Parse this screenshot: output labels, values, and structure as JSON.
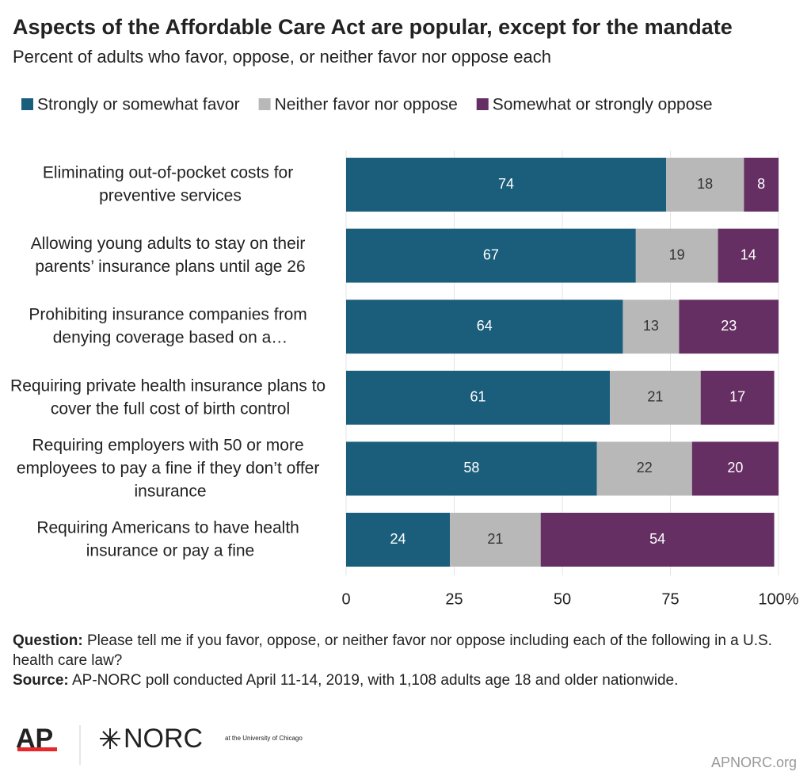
{
  "chart_data": {
    "type": "stacked-barh",
    "title": "Aspects of the Affordable Care Act are popular, except for the mandate",
    "subtitle": "Percent of adults who favor, oppose, or neither favor nor oppose each",
    "categories": [
      "Eliminating out-of-pocket costs for preventive services",
      "Allowing young adults to stay on their parents’ insurance plans until age 26",
      "Prohibiting insurance companies from denying coverage based on a…",
      "Requiring private health insurance plans to cover the full cost of birth control",
      "Requiring employers with 50 or more employees to pay a fine if they don’t offer insurance",
      "Requiring Americans to have health insurance or pay a fine"
    ],
    "series": [
      {
        "name": "Strongly or somewhat favor",
        "color": "#1a5e7c",
        "values": [
          74,
          67,
          64,
          61,
          58,
          24
        ]
      },
      {
        "name": "Neither favor nor oppose",
        "color": "#b8b8b8",
        "values": [
          18,
          19,
          13,
          21,
          22,
          21
        ]
      },
      {
        "name": "Somewhat or strongly oppose",
        "color": "#652f63",
        "values": [
          8,
          14,
          23,
          17,
          20,
          54
        ]
      }
    ],
    "xlim": [
      0,
      100
    ],
    "xticks": [
      0,
      25,
      50,
      75,
      {
        "value": 100,
        "label": "100%"
      }
    ],
    "grid": true
  },
  "footer": {
    "question_label": "Question:",
    "question": "Please tell me if you favor, oppose, or neither favor nor oppose including each of the following in a U.S. health care law?",
    "source_label": "Source:",
    "source": "AP-NORC poll conducted April 11-14, 2019, with 1,108 adults age 18 and older nationwide.",
    "logo_ap": "AP",
    "logo_norc": "NORC",
    "logo_norc_sub": "at the University of Chicago",
    "site": "APNORC.org"
  }
}
